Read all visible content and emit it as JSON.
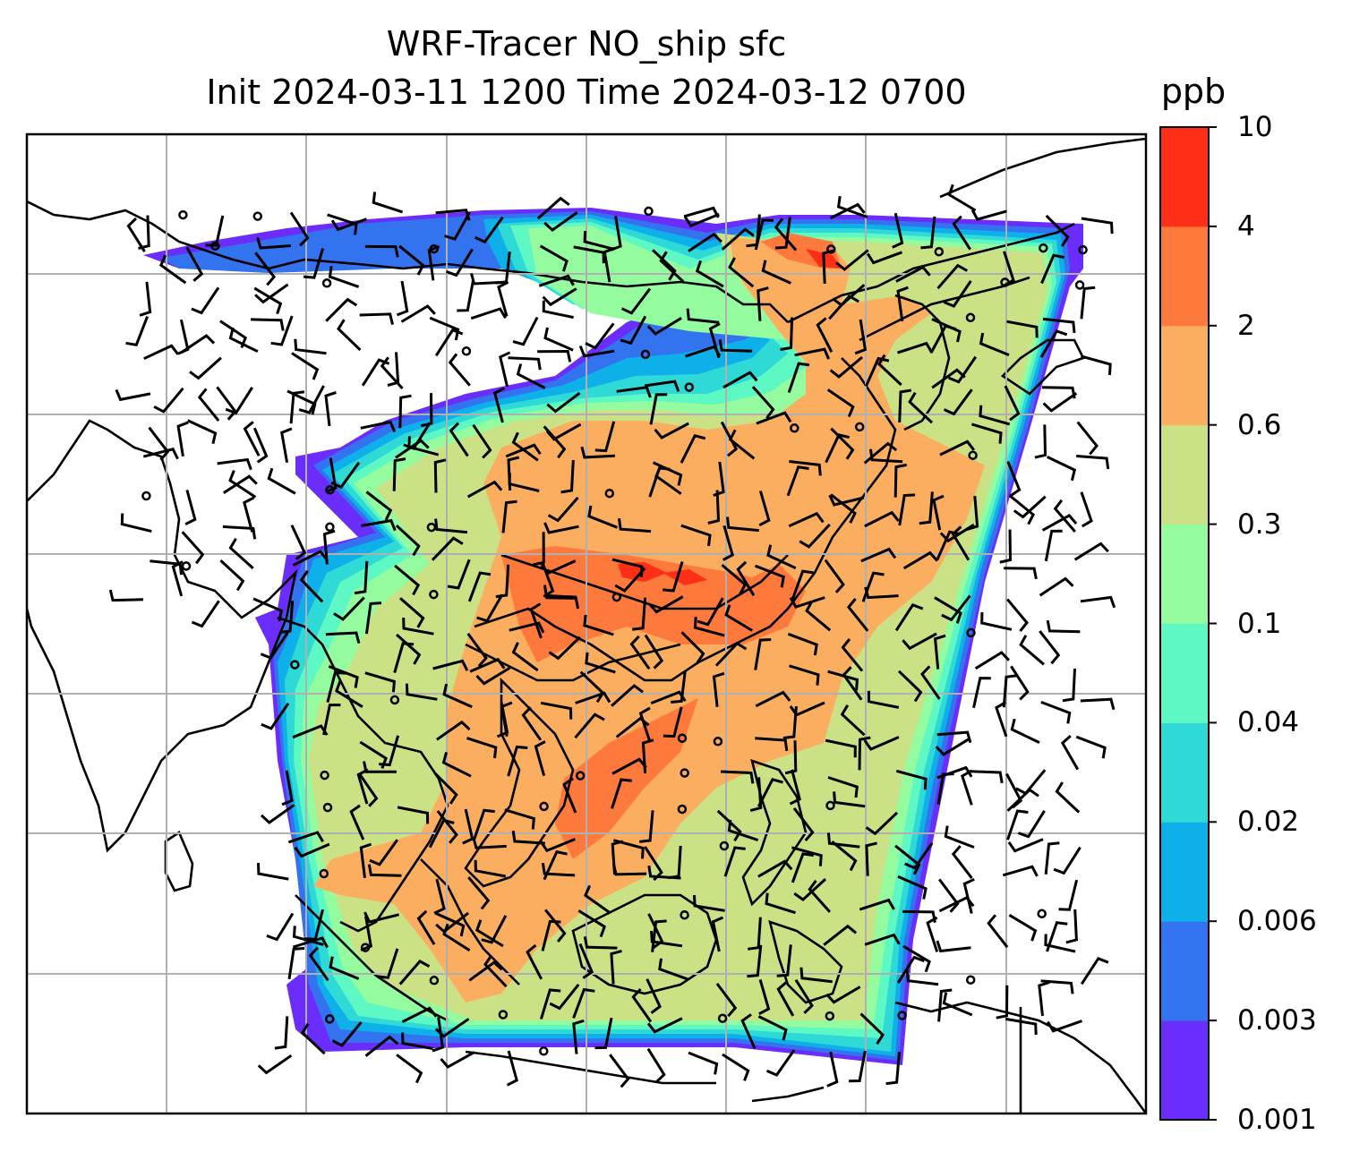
{
  "title": {
    "line1": "WRF-Tracer NO_ship sfc",
    "line2": "Init 2024-03-11 1200 Time 2024-03-12 0700"
  },
  "colorbar": {
    "unit": "ppb",
    "levels": [
      "0.001",
      "0.003",
      "0.006",
      "0.02",
      "0.04",
      "0.1",
      "0.3",
      "0.6",
      "2",
      "4",
      "10"
    ],
    "colors": [
      "#6a2dfc",
      "#3373f0",
      "#0eb0ea",
      "#2fd9d6",
      "#5ef8c4",
      "#94fb9f",
      "#cbe185",
      "#fcae60",
      "#fd7a3c",
      "#ff2f17"
    ]
  },
  "map": {
    "gridlines": true,
    "domain_note_colors": {
      "land_outline": "#000000",
      "grid": "#b0b0b0",
      "frame": "#000000"
    }
  }
}
